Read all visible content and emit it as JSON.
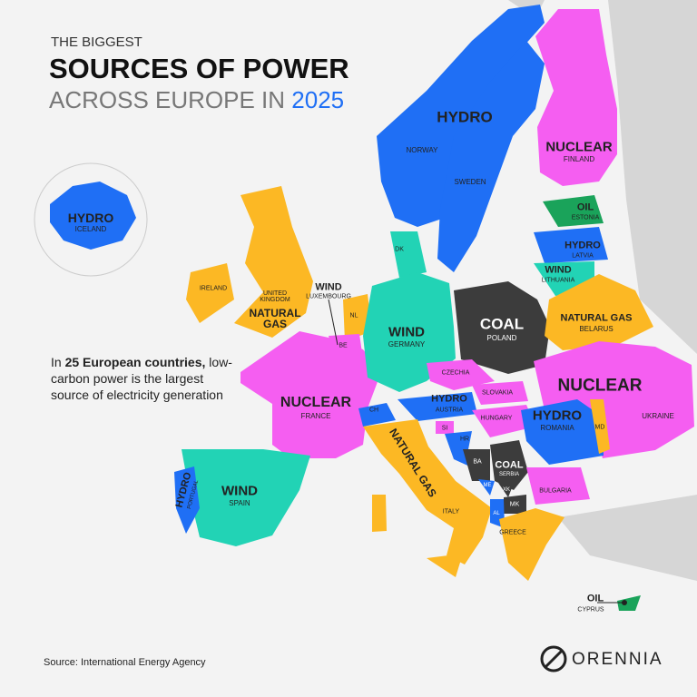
{
  "header": {
    "kicker": "THE BIGGEST",
    "title": "SOURCES OF POWER",
    "subtitle": "ACROSS EUROPE IN",
    "year": "2025"
  },
  "note": {
    "lead": "In",
    "bold": "25 European countries,",
    "rest": "low-carbon power is the largest source of electricity generation"
  },
  "labels": {
    "iceland": {
      "source": "HYDRO",
      "name": "ICELAND"
    },
    "nordic": {
      "source": "HYDRO"
    },
    "norway": {
      "name": "NORWAY"
    },
    "sweden": {
      "name": "SWEDEN"
    },
    "finland": {
      "source": "NUCLEAR",
      "name": "FINLAND"
    },
    "estonia": {
      "source": "OIL",
      "name": "ESTONIA"
    },
    "latvia": {
      "source": "HYDRO",
      "name": "LATVIA"
    },
    "lithuania": {
      "source": "WIND",
      "name": "LITHUANIA"
    },
    "denmark": {
      "name": "DK"
    },
    "luxembourg": {
      "source": "WIND",
      "name": "LUXEMBOURG"
    },
    "netherlands": {
      "name": "NL"
    },
    "belgium": {
      "name": "BE"
    },
    "ireland": {
      "name": "IRELAND"
    },
    "uk": {
      "source": "NATURAL GAS",
      "name": "UNITED KINGDOM"
    },
    "germany": {
      "source": "WIND",
      "name": "GERMANY"
    },
    "poland": {
      "source": "COAL",
      "name": "POLAND"
    },
    "belarus": {
      "source": "NATURAL GAS",
      "name": "BELARUS"
    },
    "east": {
      "source": "NUCLEAR"
    },
    "ukraine": {
      "name": "UKRAINE"
    },
    "czechia": {
      "name": "CZECHIA"
    },
    "slovakia": {
      "name": "SLOVAKIA"
    },
    "austria": {
      "source": "HYDRO",
      "name": "AUSTRIA"
    },
    "hungary": {
      "name": "HUNGARY"
    },
    "france": {
      "source": "NUCLEAR",
      "name": "FRANCE"
    },
    "switzerland": {
      "name": "CH"
    },
    "slovenia": {
      "name": "SI"
    },
    "croatia": {
      "name": "HR"
    },
    "moldova": {
      "name": "MD"
    },
    "romania": {
      "source": "HYDRO",
      "name": "ROMANIA"
    },
    "italy": {
      "source": "NATURAL GAS",
      "name": "ITALY"
    },
    "bosnia": {
      "name": "BA"
    },
    "serbia": {
      "source": "COAL",
      "name": "SERBIA"
    },
    "montenegro": {
      "name": "ME"
    },
    "kosovo": {
      "name": "XK"
    },
    "macedonia": {
      "name": "MK"
    },
    "albania": {
      "name": "AL"
    },
    "bulgaria": {
      "name": "BULGARIA"
    },
    "greece": {
      "name": "GREECE"
    },
    "spain": {
      "source": "WIND",
      "name": "SPAIN"
    },
    "portugal": {
      "source": "HYDRO",
      "name": "PORTUGAL"
    },
    "cyprus": {
      "source": "OIL",
      "name": "CYPRUS"
    }
  },
  "footer": {
    "source": "Source: International Energy Agency",
    "brand": "ORENNIA"
  }
}
